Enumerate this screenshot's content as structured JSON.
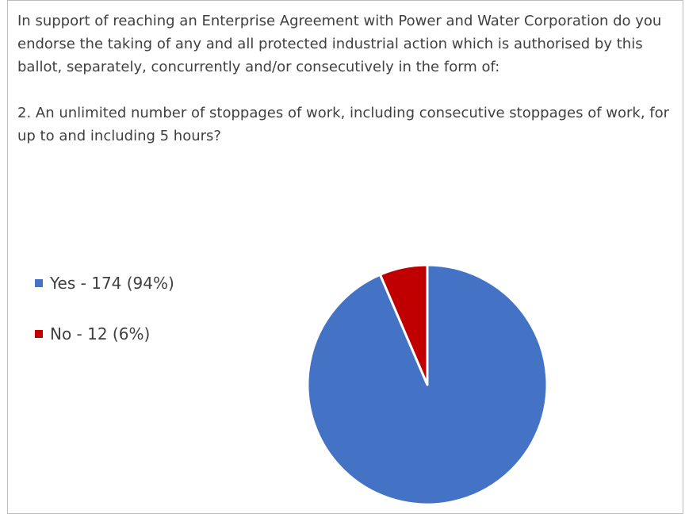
{
  "question": {
    "intro": "In support of reaching an Enterprise Agreement with Power and Water Corporation do you endorse the taking of any and all protected industrial action which is authorised by this ballot, separately, concurrently and/or consecutively in the form of:",
    "item": "2. An unlimited number of stoppages of work, including consecutive stoppages of work, for up to and including 5 hours?"
  },
  "chart_data": {
    "type": "pie",
    "title": "",
    "legend_position": "left",
    "slices": [
      {
        "label": "Yes - 174 (94%)",
        "category": "Yes",
        "value": 174,
        "percent": 94,
        "color": "#4472c4"
      },
      {
        "label": "No - 12 (6%)",
        "category": "No",
        "value": 12,
        "percent": 6,
        "color": "#c00000"
      }
    ]
  }
}
